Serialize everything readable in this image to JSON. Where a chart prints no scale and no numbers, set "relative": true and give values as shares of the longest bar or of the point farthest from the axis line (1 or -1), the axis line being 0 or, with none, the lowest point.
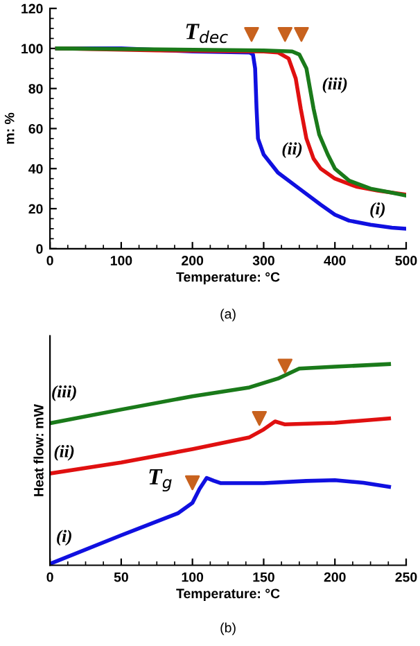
{
  "chart_data": [
    {
      "type": "line",
      "xlabel": "Temperature: °C",
      "ylabel": "m: %",
      "xlim": [
        0,
        500
      ],
      "ylim": [
        0,
        120
      ],
      "xticks": [
        0,
        100,
        200,
        300,
        400,
        500
      ],
      "yticks": [
        0,
        20,
        40,
        60,
        80,
        100,
        120
      ],
      "grid": false,
      "legend": false,
      "series": [
        {
          "name": "(i)",
          "color": "#1010e0",
          "x": [
            10,
            100,
            200,
            280,
            285,
            288,
            290,
            292,
            300,
            320,
            350,
            380,
            400,
            420,
            450,
            480,
            500
          ],
          "values": [
            100,
            100,
            98.5,
            98,
            97,
            90,
            70,
            55,
            47,
            38,
            30,
            22,
            17,
            14,
            12,
            10.5,
            10
          ]
        },
        {
          "name": "(ii)",
          "color": "#e01010",
          "x": [
            10,
            150,
            300,
            320,
            335,
            345,
            352,
            360,
            370,
            380,
            400,
            430,
            460,
            500
          ],
          "values": [
            100,
            99,
            98.5,
            98,
            95,
            85,
            70,
            55,
            45,
            40,
            35,
            31,
            29,
            27
          ]
        },
        {
          "name": "(iii)",
          "color": "#1a7a1a",
          "x": [
            10,
            300,
            340,
            350,
            360,
            365,
            370,
            378,
            390,
            400,
            420,
            450,
            480,
            500
          ],
          "values": [
            100,
            99,
            98.5,
            97,
            90,
            80,
            70,
            57,
            47,
            40,
            34,
            30,
            28,
            26.5
          ]
        },
        {
          "type": "scatter",
          "marker": "triangle",
          "color": "#c8621e",
          "x": [
            283,
            330,
            353
          ],
          "values": [
            107,
            107,
            107
          ]
        }
      ],
      "annotations": [
        "T$_{dec}$",
        "(a)"
      ]
    },
    {
      "type": "line",
      "relative": true,
      "xlabel": "Temperature: °C",
      "ylabel": "Heat flow: mW",
      "xlim": [
        0,
        250
      ],
      "xticks": [
        0,
        50,
        100,
        150,
        200,
        250
      ],
      "grid": false,
      "legend": false,
      "tick_labels": "x",
      "series": [
        {
          "name": "(i)",
          "color": "#1010e0",
          "x": [
            0,
            50,
            90,
            100,
            105,
            110,
            115,
            120,
            150,
            180,
            200,
            220,
            238
          ],
          "values": [
            0.007,
            0.149,
            0.259,
            0.31,
            0.38,
            0.434,
            0.42,
            0.408,
            0.408,
            0.419,
            0.423,
            0.41,
            0.39
          ]
        },
        {
          "name": "(ii)",
          "color": "#e01010",
          "x": [
            0,
            50,
            100,
            140,
            150,
            158,
            165,
            200,
            238
          ],
          "values": [
            0.456,
            0.511,
            0.577,
            0.636,
            0.675,
            0.715,
            0.7,
            0.708,
            0.73
          ]
        },
        {
          "name": "(iii)",
          "color": "#1a7a1a",
          "x": [
            0,
            50,
            100,
            140,
            160,
            175,
            200,
            238
          ],
          "values": [
            0.706,
            0.774,
            0.84,
            0.884,
            0.928,
            0.978,
            0.987,
            1.0
          ]
        },
        {
          "type": "scatter",
          "marker": "triangle",
          "color": "#c8621e",
          "x": [
            100,
            147,
            165
          ],
          "values": [
            0.41,
            0.73,
            0.99
          ]
        }
      ],
      "annotations": [
        "T$_{g}$",
        "(b)"
      ]
    }
  ]
}
